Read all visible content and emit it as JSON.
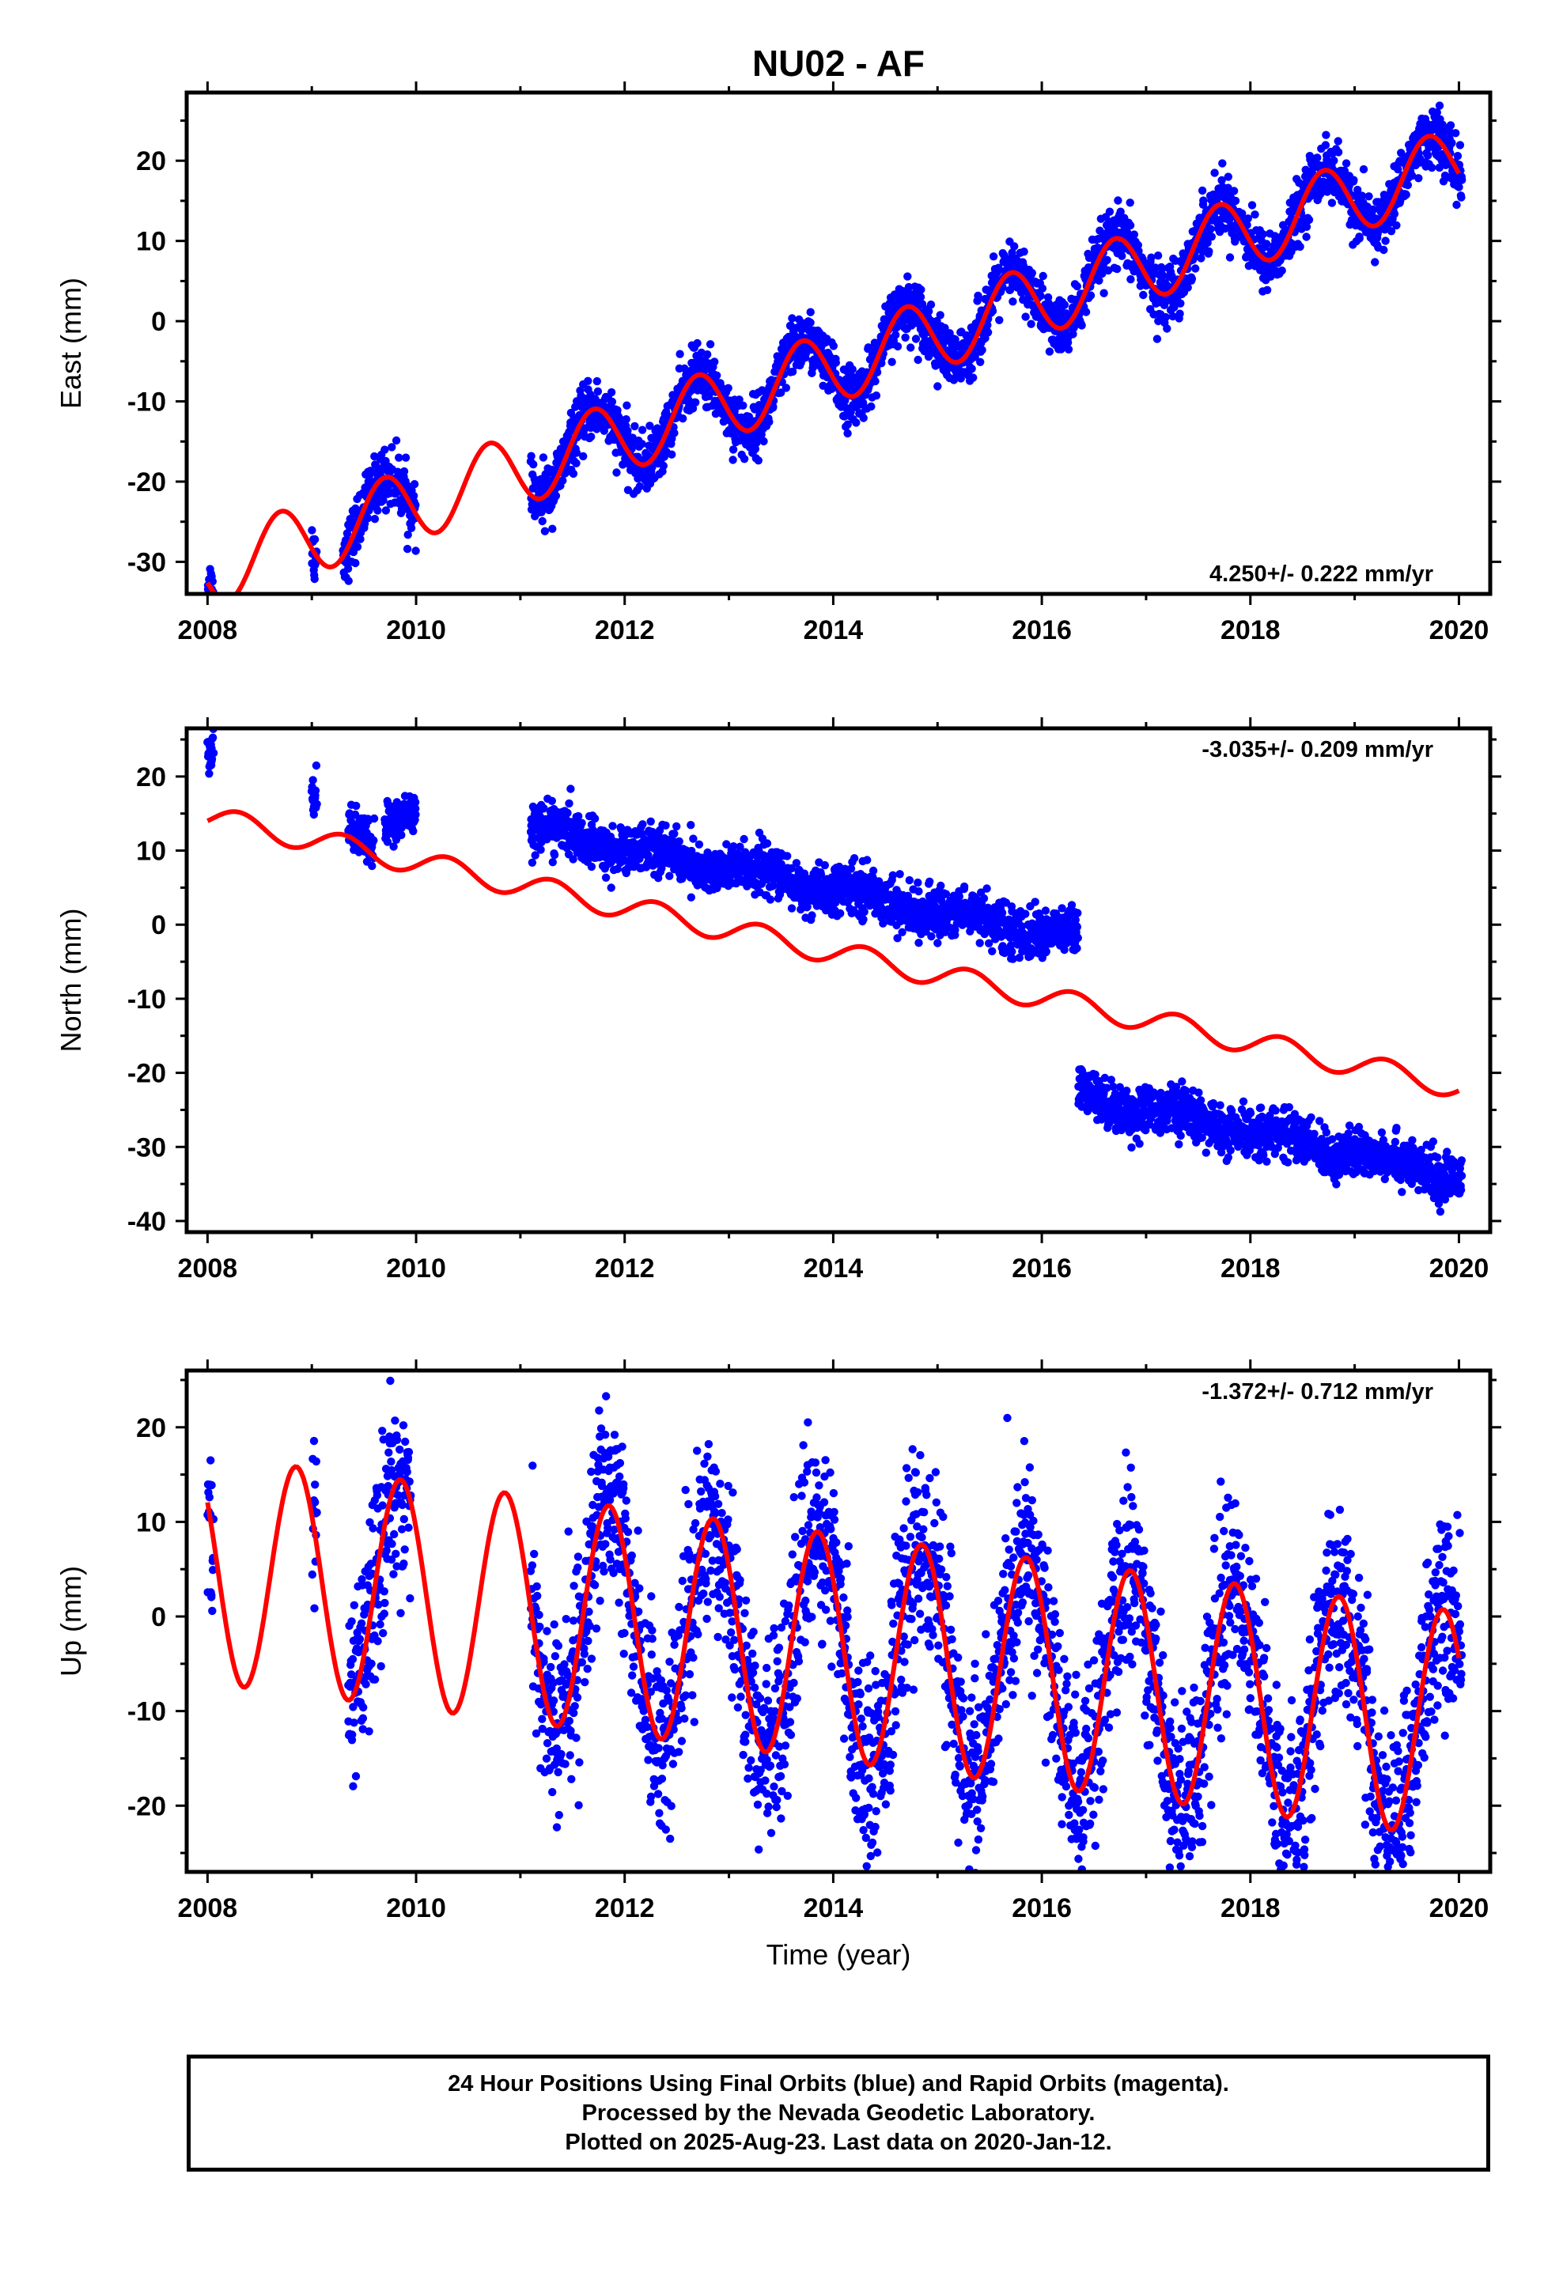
{
  "title": "NU02 - AF",
  "colors": {
    "data": "#0000ff",
    "model": "#ff0000",
    "axis": "#000000"
  },
  "xlabel": "Time (year)",
  "footer": {
    "line1": "24 Hour Positions Using Final Orbits (blue) and Rapid Orbits (magenta).",
    "line2": "Processed by the Nevada Geodetic Laboratory.",
    "line3": "Plotted on 2025-Aug-23. Last data on 2020-Jan-12."
  },
  "chart_data": [
    {
      "type": "scatter",
      "ylabel": "East (mm)",
      "rate": "4.250+/- 0.222 mm/yr",
      "xlim": [
        2007.8,
        2020.3
      ],
      "ylim": [
        -34,
        28.5
      ],
      "xticks": [
        "2008",
        "2010",
        "2012",
        "2014",
        "2016",
        "2018",
        "2020"
      ],
      "yticks": [
        "-30",
        "-20",
        "-10",
        "0",
        "10",
        "20"
      ],
      "model": {
        "x0": 2008.0,
        "x1": 2020.0,
        "offset": -31.2,
        "rate": 4.25,
        "amplitude": 4.5,
        "phase_year": 0.45
      },
      "data_segments": [
        [
          2008.0,
          2008.06
        ],
        [
          2009.0,
          2009.05
        ],
        [
          2009.3,
          2010.0
        ],
        [
          2011.1,
          2020.03
        ]
      ],
      "scatter_sigma": 1.8
    },
    {
      "type": "scatter",
      "ylabel": "North (mm)",
      "rate": "-3.035+/- 0.209 mm/yr",
      "xlim": [
        2007.8,
        2020.3
      ],
      "ylim": [
        -41.5,
        26.5
      ],
      "xticks": [
        "2008",
        "2010",
        "2012",
        "2014",
        "2016",
        "2018",
        "2020"
      ],
      "yticks": [
        "-40",
        "-30",
        "-20",
        "-10",
        "0",
        "10",
        "20"
      ],
      "model": {
        "x0": 2008.0,
        "x1": 2020.0,
        "offset": 14.5,
        "rate": -3.035,
        "amplitude": 1.6,
        "phase_year": 0.05
      },
      "data_segments": [
        [
          2008.0,
          2008.06
        ],
        [
          2009.0,
          2009.05
        ],
        [
          2009.35,
          2009.6
        ],
        [
          2009.7,
          2010.0
        ],
        [
          2011.1,
          2016.35
        ],
        [
          2016.35,
          2020.03
        ]
      ],
      "segment_levels": [
        [
          23,
          23
        ],
        [
          18,
          18
        ],
        [
          12,
          11
        ],
        [
          14,
          16
        ],
        [
          13,
          -2
        ],
        [
          -23,
          -34
        ]
      ],
      "scatter_sigma": 1.6
    },
    {
      "type": "scatter",
      "ylabel": "Up (mm)",
      "rate": "-1.372+/- 0.712 mm/yr",
      "xlim": [
        2007.8,
        2020.3
      ],
      "ylim": [
        -27,
        26
      ],
      "xticks": [
        "2008",
        "2010",
        "2012",
        "2014",
        "2016",
        "2018",
        "2020"
      ],
      "yticks": [
        "-20",
        "-10",
        "0",
        "10",
        "20"
      ],
      "model": {
        "x0": 2008.0,
        "x1": 2020.0,
        "offset": 5.0,
        "rate": -1.372,
        "amplitude": 12.0,
        "phase_year": 0.6
      },
      "data_segments": [
        [
          2008.0,
          2008.06
        ],
        [
          2009.0,
          2009.05
        ],
        [
          2009.35,
          2009.95
        ],
        [
          2011.1,
          2020.03
        ]
      ],
      "scatter_sigma": 5.0
    }
  ]
}
